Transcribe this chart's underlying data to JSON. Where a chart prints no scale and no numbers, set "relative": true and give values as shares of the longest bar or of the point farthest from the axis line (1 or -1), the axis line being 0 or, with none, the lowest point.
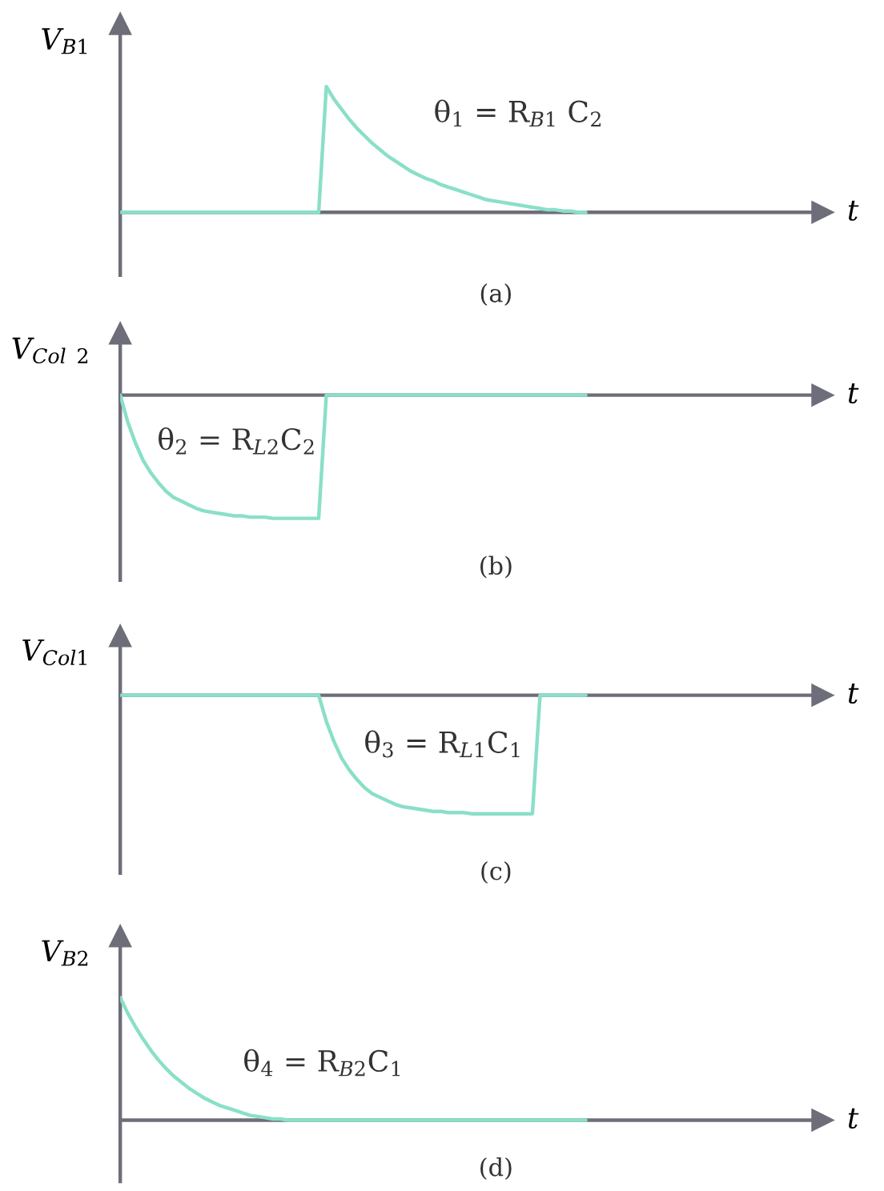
{
  "chart_data": [
    {
      "type": "line",
      "relative": true,
      "ylabel": "V$_{B1}$",
      "xlabel": "t",
      "annotations": [
        "θ$_{1}$ = R$_{B1}$ C$_{2}$",
        "(a)"
      ],
      "categories": [
        null,
        null,
        null,
        null,
        null,
        null,
        null,
        null,
        null,
        null,
        null,
        null,
        null,
        null,
        null,
        null,
        null,
        null,
        null,
        null,
        null,
        null,
        null,
        null,
        null,
        null,
        null,
        null,
        null,
        null,
        null,
        null,
        null,
        null,
        null,
        null,
        null,
        null,
        null,
        null,
        null,
        null,
        null,
        null,
        null,
        null,
        null,
        null,
        null,
        null,
        null,
        null,
        null,
        null,
        null,
        null,
        null,
        null,
        null,
        null,
        null,
        null,
        null,
        null,
        null,
        null,
        null,
        null,
        null,
        null,
        null,
        null,
        null,
        null,
        null,
        null,
        null,
        null,
        null,
        null,
        null,
        null,
        null,
        null,
        null,
        null,
        null,
        null,
        null,
        null,
        null,
        null,
        null
      ],
      "series": [
        {
          "color": "#8adfc8",
          "values": [
            0,
            0,
            0,
            0,
            0,
            0,
            0,
            0,
            0,
            0,
            0,
            0,
            0,
            0,
            0,
            0,
            0,
            0,
            0,
            0,
            0,
            0,
            0,
            0,
            0,
            0,
            0,
            1,
            0.9,
            0.82,
            0.74,
            0.67,
            0.61,
            0.55,
            0.5,
            0.45,
            0.41,
            0.37,
            0.33,
            0.3,
            0.27,
            0.25,
            0.22,
            0.2,
            0.18,
            0.16,
            0.14,
            0.12,
            0.1,
            0.09,
            0.08,
            0.07,
            0.06,
            0.05,
            0.04,
            0.03,
            0.02,
            0.02,
            0.01,
            0.01,
            0,
            0,
            null,
            null,
            null,
            null,
            null,
            null,
            null,
            null,
            null,
            null,
            null,
            null,
            null,
            null,
            null,
            null,
            null,
            null,
            null,
            null,
            null,
            null,
            null,
            null,
            null,
            null,
            null,
            null,
            null,
            null,
            null
          ]
        }
      ]
    },
    {
      "type": "line",
      "relative": true,
      "ylabel": "V$_{Col}$ $_{2}$",
      "xlabel": "t",
      "annotations": [
        "θ$_{2}$ = R$_{L2}$C$_{2}$",
        "(b)"
      ],
      "categories": [
        null,
        null,
        null,
        null,
        null,
        null,
        null,
        null,
        null,
        null,
        null,
        null,
        null,
        null,
        null,
        null,
        null,
        null,
        null,
        null,
        null,
        null,
        null,
        null,
        null,
        null,
        null,
        null,
        null,
        null,
        null,
        null,
        null,
        null,
        null,
        null,
        null,
        null,
        null,
        null,
        null,
        null,
        null,
        null,
        null,
        null,
        null,
        null,
        null,
        null,
        null,
        null,
        null,
        null,
        null,
        null,
        null,
        null,
        null,
        null,
        null,
        null,
        null,
        null,
        null,
        null,
        null,
        null,
        null,
        null,
        null,
        null,
        null,
        null,
        null,
        null,
        null,
        null,
        null,
        null,
        null,
        null,
        null,
        null,
        null,
        null,
        null,
        null,
        null,
        null,
        null,
        null,
        null
      ],
      "series": [
        {
          "color": "#8adfc8",
          "values": [
            0,
            -0.22,
            -0.39,
            -0.53,
            -0.63,
            -0.71,
            -0.78,
            -0.83,
            -0.86,
            -0.89,
            -0.92,
            -0.94,
            -0.95,
            -0.96,
            -0.97,
            -0.98,
            -0.98,
            -0.99,
            -0.99,
            -0.99,
            -1,
            -1,
            -1,
            -1,
            -1,
            -1,
            -1,
            0,
            0,
            0,
            0,
            0,
            0,
            0,
            0,
            0,
            0,
            0,
            0,
            0,
            0,
            0,
            0,
            0,
            0,
            0,
            0,
            0,
            0,
            0,
            0,
            0,
            0,
            0,
            0,
            0,
            0,
            0,
            0,
            0,
            0,
            0,
            null,
            null,
            null,
            null,
            null,
            null,
            null,
            null,
            null,
            null,
            null,
            null,
            null,
            null,
            null,
            null,
            null,
            null,
            null,
            null,
            null,
            null,
            null,
            null,
            null,
            null,
            null,
            null,
            null,
            null,
            null
          ]
        }
      ]
    },
    {
      "type": "line",
      "relative": true,
      "ylabel": "V$_{Col1}$",
      "xlabel": "t",
      "annotations": [
        "θ$_{3}$ = R$_{L1}$C$_{1}$",
        "(c)"
      ],
      "categories": [
        null,
        null,
        null,
        null,
        null,
        null,
        null,
        null,
        null,
        null,
        null,
        null,
        null,
        null,
        null,
        null,
        null,
        null,
        null,
        null,
        null,
        null,
        null,
        null,
        null,
        null,
        null,
        null,
        null,
        null,
        null,
        null,
        null,
        null,
        null,
        null,
        null,
        null,
        null,
        null,
        null,
        null,
        null,
        null,
        null,
        null,
        null,
        null,
        null,
        null,
        null,
        null,
        null,
        null,
        null,
        null,
        null,
        null,
        null,
        null,
        null,
        null,
        null,
        null,
        null,
        null,
        null,
        null,
        null,
        null,
        null,
        null,
        null,
        null,
        null,
        null,
        null,
        null,
        null,
        null,
        null,
        null,
        null,
        null,
        null,
        null,
        null,
        null,
        null,
        null,
        null,
        null,
        null
      ],
      "series": [
        {
          "color": "#8adfc8",
          "values": [
            0,
            0,
            0,
            0,
            0,
            0,
            0,
            0,
            0,
            0,
            0,
            0,
            0,
            0,
            0,
            0,
            0,
            0,
            0,
            0,
            0,
            0,
            0,
            0,
            0,
            0,
            0,
            -0.22,
            -0.39,
            -0.53,
            -0.63,
            -0.71,
            -0.78,
            -0.83,
            -0.86,
            -0.89,
            -0.92,
            -0.94,
            -0.95,
            -0.96,
            -0.97,
            -0.98,
            -0.98,
            -0.99,
            -0.99,
            -0.99,
            -1,
            -1,
            -1,
            -1,
            -1,
            -1,
            -1,
            -1,
            -1,
            0,
            0,
            0,
            0,
            0,
            0,
            0,
            null,
            null,
            null,
            null,
            null,
            null,
            null,
            null,
            null,
            null,
            null,
            null,
            null,
            null,
            null,
            null,
            null,
            null,
            null,
            null,
            null,
            null,
            null,
            null,
            null,
            null,
            null,
            null,
            null,
            null,
            null
          ]
        }
      ]
    },
    {
      "type": "line",
      "relative": true,
      "ylabel": "V$_{B2}$",
      "xlabel": "t",
      "annotations": [
        "θ$_{4}$ = R$_{B2}$C$_{1}$",
        "(d)"
      ],
      "categories": [
        null,
        null,
        null,
        null,
        null,
        null,
        null,
        null,
        null,
        null,
        null,
        null,
        null,
        null,
        null,
        null,
        null,
        null,
        null,
        null,
        null,
        null,
        null,
        null,
        null,
        null,
        null,
        null,
        null,
        null,
        null,
        null,
        null,
        null,
        null,
        null,
        null,
        null,
        null,
        null,
        null,
        null,
        null,
        null,
        null,
        null,
        null,
        null,
        null,
        null,
        null,
        null,
        null,
        null,
        null,
        null,
        null,
        null,
        null,
        null,
        null,
        null,
        null,
        null,
        null,
        null,
        null,
        null,
        null,
        null,
        null,
        null,
        null,
        null,
        null,
        null,
        null,
        null,
        null,
        null,
        null,
        null,
        null,
        null,
        null,
        null,
        null,
        null,
        null,
        null,
        null,
        null,
        null
      ],
      "series": [
        {
          "color": "#8adfc8",
          "values": [
            1,
            0.87,
            0.76,
            0.66,
            0.57,
            0.49,
            0.42,
            0.36,
            0.31,
            0.26,
            0.22,
            0.18,
            0.15,
            0.12,
            0.1,
            0.08,
            0.06,
            0.04,
            0.03,
            0.02,
            0.01,
            0.01,
            0,
            0,
            0,
            0,
            0,
            0,
            0,
            0,
            0,
            0,
            0,
            0,
            0,
            0,
            0,
            0,
            0,
            0,
            0,
            0,
            0,
            0,
            0,
            0,
            0,
            0,
            0,
            0,
            0,
            0,
            0,
            0,
            0,
            0,
            0,
            0,
            0,
            0,
            0,
            0,
            null,
            null,
            null,
            null,
            null,
            null,
            null,
            null,
            null,
            null,
            null,
            null,
            null,
            null,
            null,
            null,
            null,
            null,
            null,
            null,
            null,
            null,
            null,
            null,
            null,
            null,
            null,
            null,
            null,
            null,
            null
          ]
        }
      ]
    }
  ]
}
